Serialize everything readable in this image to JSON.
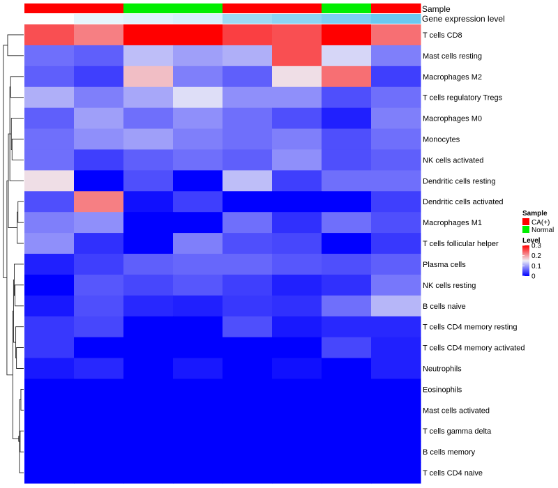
{
  "chart_data": {
    "type": "heatmap",
    "annotation_labels": {
      "sample": "Sample",
      "gene_expression": "Gene expression level"
    },
    "row_labels": [
      "T cells CD8",
      "Mast cells resting",
      "Macrophages M2",
      "T cells regulatory  Tregs",
      "Macrophages M0",
      "Monocytes",
      "NK cells activated",
      "Dendritic cells resting",
      "Dendritic cells activated",
      "Macrophages M1",
      "T cells follicular helper",
      "Plasma cells",
      "NK cells resting",
      "B cells naive",
      "T cells CD4 memory resting",
      "T cells CD4 memory activated",
      "Neutrophils",
      "Eosinophils",
      "Mast cells activated",
      "T cells gamma delta",
      "B cells memory",
      "T cells CD4 naive"
    ],
    "sample_groups": [
      "CA(+)",
      "CA(+)",
      "Normal",
      "Normal",
      "CA(+)",
      "CA(+)",
      "Normal",
      "CA(+)"
    ],
    "gene_expression_levels": [
      0.0,
      0.15,
      0.2,
      0.25,
      0.6,
      0.7,
      0.8,
      0.9
    ],
    "values": [
      [
        0.25,
        0.22,
        0.3,
        0.3,
        0.26,
        0.25,
        0.3,
        0.23
      ],
      [
        0.07,
        0.06,
        0.12,
        0.1,
        0.11,
        0.25,
        0.135,
        0.08
      ],
      [
        0.06,
        0.04,
        0.18,
        0.08,
        0.06,
        0.16,
        0.23,
        0.04
      ],
      [
        0.11,
        0.08,
        0.105,
        0.14,
        0.09,
        0.09,
        0.05,
        0.07
      ],
      [
        0.06,
        0.1,
        0.07,
        0.09,
        0.07,
        0.05,
        0.02,
        0.08
      ],
      [
        0.07,
        0.09,
        0.1,
        0.08,
        0.07,
        0.08,
        0.05,
        0.07
      ],
      [
        0.07,
        0.04,
        0.06,
        0.07,
        0.06,
        0.09,
        0.05,
        0.06
      ],
      [
        0.16,
        0.0,
        0.05,
        0.0,
        0.12,
        0.04,
        0.07,
        0.07
      ],
      [
        0.05,
        0.22,
        0.01,
        0.04,
        0.0,
        0.0,
        0.0,
        0.04
      ],
      [
        0.08,
        0.09,
        0.0,
        0.0,
        0.07,
        0.03,
        0.07,
        0.05
      ],
      [
        0.09,
        0.03,
        0.0,
        0.08,
        0.05,
        0.045,
        0.0,
        0.035
      ],
      [
        0.02,
        0.04,
        0.06,
        0.065,
        0.065,
        0.055,
        0.05,
        0.06
      ],
      [
        0.0,
        0.055,
        0.045,
        0.055,
        0.04,
        0.02,
        0.03,
        0.075
      ],
      [
        0.015,
        0.05,
        0.025,
        0.02,
        0.035,
        0.03,
        0.07,
        0.115
      ],
      [
        0.035,
        0.045,
        0.0,
        0.0,
        0.05,
        0.015,
        0.025,
        0.025
      ],
      [
        0.035,
        0.0,
        0.0,
        0.0,
        0.0,
        0.0,
        0.045,
        0.02
      ],
      [
        0.015,
        0.025,
        0.0,
        0.015,
        0.0,
        0.01,
        0.0,
        0.02
      ],
      [
        0,
        0,
        0,
        0,
        0,
        0,
        0,
        0
      ],
      [
        0,
        0,
        0,
        0,
        0,
        0,
        0,
        0
      ],
      [
        0,
        0,
        0,
        0,
        0,
        0,
        0,
        0
      ],
      [
        0,
        0,
        0,
        0,
        0,
        0,
        0,
        0
      ],
      [
        0,
        0,
        0,
        0,
        0,
        0,
        0,
        0
      ]
    ],
    "color_scale": {
      "min": 0,
      "mid": 0.15,
      "max": 0.3,
      "low_color": "#0000ff",
      "mid_color": "#eeeef6",
      "high_color": "#ff0000"
    },
    "legend": {
      "sample_title": "Sample",
      "sample_entries": [
        {
          "label": "CA(+)",
          "color": "#ff0000"
        },
        {
          "label": "Normal",
          "color": "#00ee00"
        }
      ],
      "level_title": "Level",
      "level_ticks": [
        "0.3",
        "0.2",
        "0.1",
        "0"
      ],
      "level_tick_values": [
        0.3,
        0.2,
        0.1,
        0
      ],
      "placement": "right"
    },
    "gene_expression_colors": {
      "low": "#ffffff",
      "high": "#5bc3ef"
    },
    "dendrogram": {
      "position": "left",
      "merges": [
        [
          17,
          18
        ],
        [
          19,
          20
        ],
        [
          22,
          21
        ],
        [
          23,
          24
        ],
        [
          8,
          9
        ],
        [
          26,
          10
        ],
        [
          15,
          16
        ],
        [
          28,
          14
        ],
        [
          12,
          13
        ],
        [
          11,
          30
        ],
        [
          29,
          31
        ],
        [
          25,
          32
        ],
        [
          5,
          6
        ],
        [
          34,
          4
        ],
        [
          2,
          3
        ],
        [
          36,
          7
        ],
        [
          35,
          37
        ],
        [
          27,
          38
        ],
        [
          0,
          1
        ],
        [
          33,
          39
        ],
        [
          40,
          41
        ]
      ]
    }
  }
}
